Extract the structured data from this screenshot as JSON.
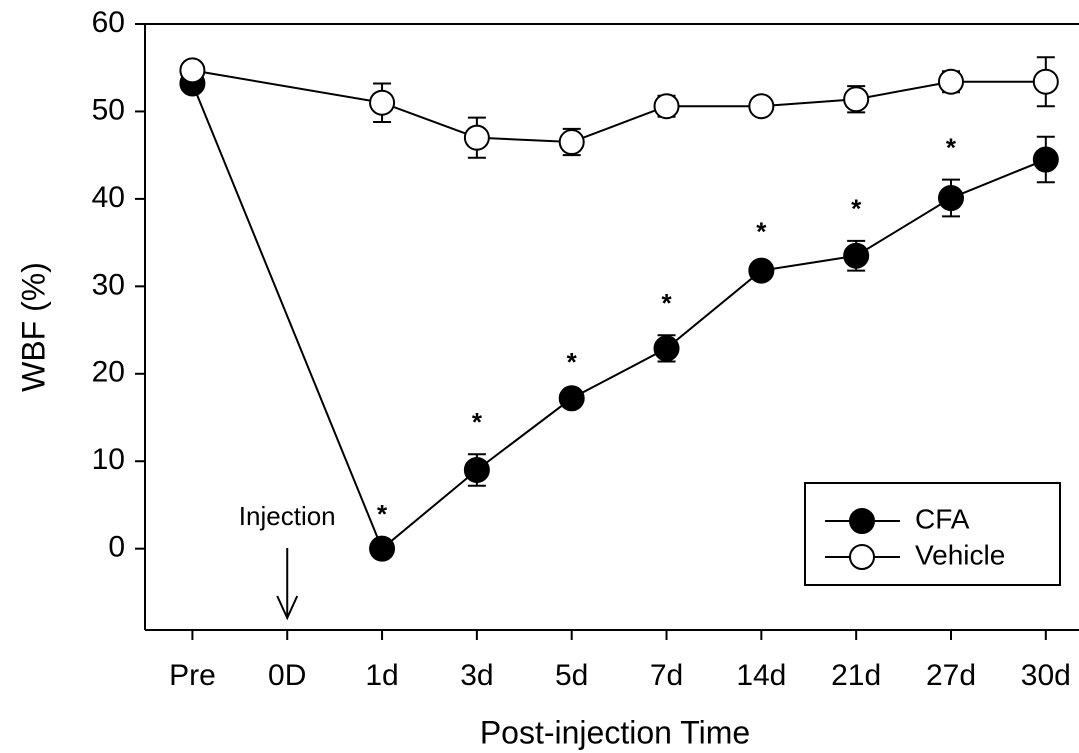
{
  "chart_data": {
    "type": "line",
    "xlabel": "Post-injection Time",
    "ylabel": "WBF (%)",
    "xlim": [
      -0.5,
      9.35
    ],
    "xticks": [
      {
        "value": 0,
        "label": "Pre"
      },
      {
        "value": 1,
        "label": "0D"
      },
      {
        "value": 2,
        "label": "1d"
      },
      {
        "value": 3,
        "label": "3d"
      },
      {
        "value": 4,
        "label": "5d"
      },
      {
        "value": 5,
        "label": "7d"
      },
      {
        "value": 6,
        "label": "14d"
      },
      {
        "value": 7,
        "label": "21d"
      },
      {
        "value": 8,
        "label": "27d"
      },
      {
        "value": 9,
        "label": "30d"
      }
    ],
    "ylim": [
      -9.3,
      60
    ],
    "yticks": [
      0,
      10,
      20,
      30,
      40,
      50,
      60
    ],
    "x": [
      0,
      2,
      3,
      4,
      5,
      6,
      7,
      8,
      9
    ],
    "series": [
      {
        "name": "CFA",
        "color": "#000000",
        "marker_fill": "#000000",
        "values": [
          53.2,
          0,
          9,
          17.2,
          22.9,
          31.8,
          33.5,
          40.1,
          44.5
        ],
        "errors": [
          0.5,
          0.3,
          1.8,
          0.5,
          1.5,
          0.8,
          1.7,
          2.1,
          2.6
        ]
      },
      {
        "name": "Vehicle",
        "color": "#000000",
        "marker_fill": "#ffffff",
        "values": [
          54.7,
          51,
          47,
          46.5,
          50.6,
          50.6,
          51.4,
          53.4,
          53.4
        ],
        "errors": [
          0.5,
          2.2,
          2.3,
          1.5,
          1.2,
          0.5,
          1.5,
          1.2,
          2.8
        ]
      }
    ],
    "significance": {
      "label": "*",
      "x": [
        2,
        3,
        4,
        5,
        6,
        7,
        8
      ]
    },
    "annotations": [
      {
        "text": "Injection",
        "x": 1
      }
    ],
    "legend": "lower right"
  }
}
